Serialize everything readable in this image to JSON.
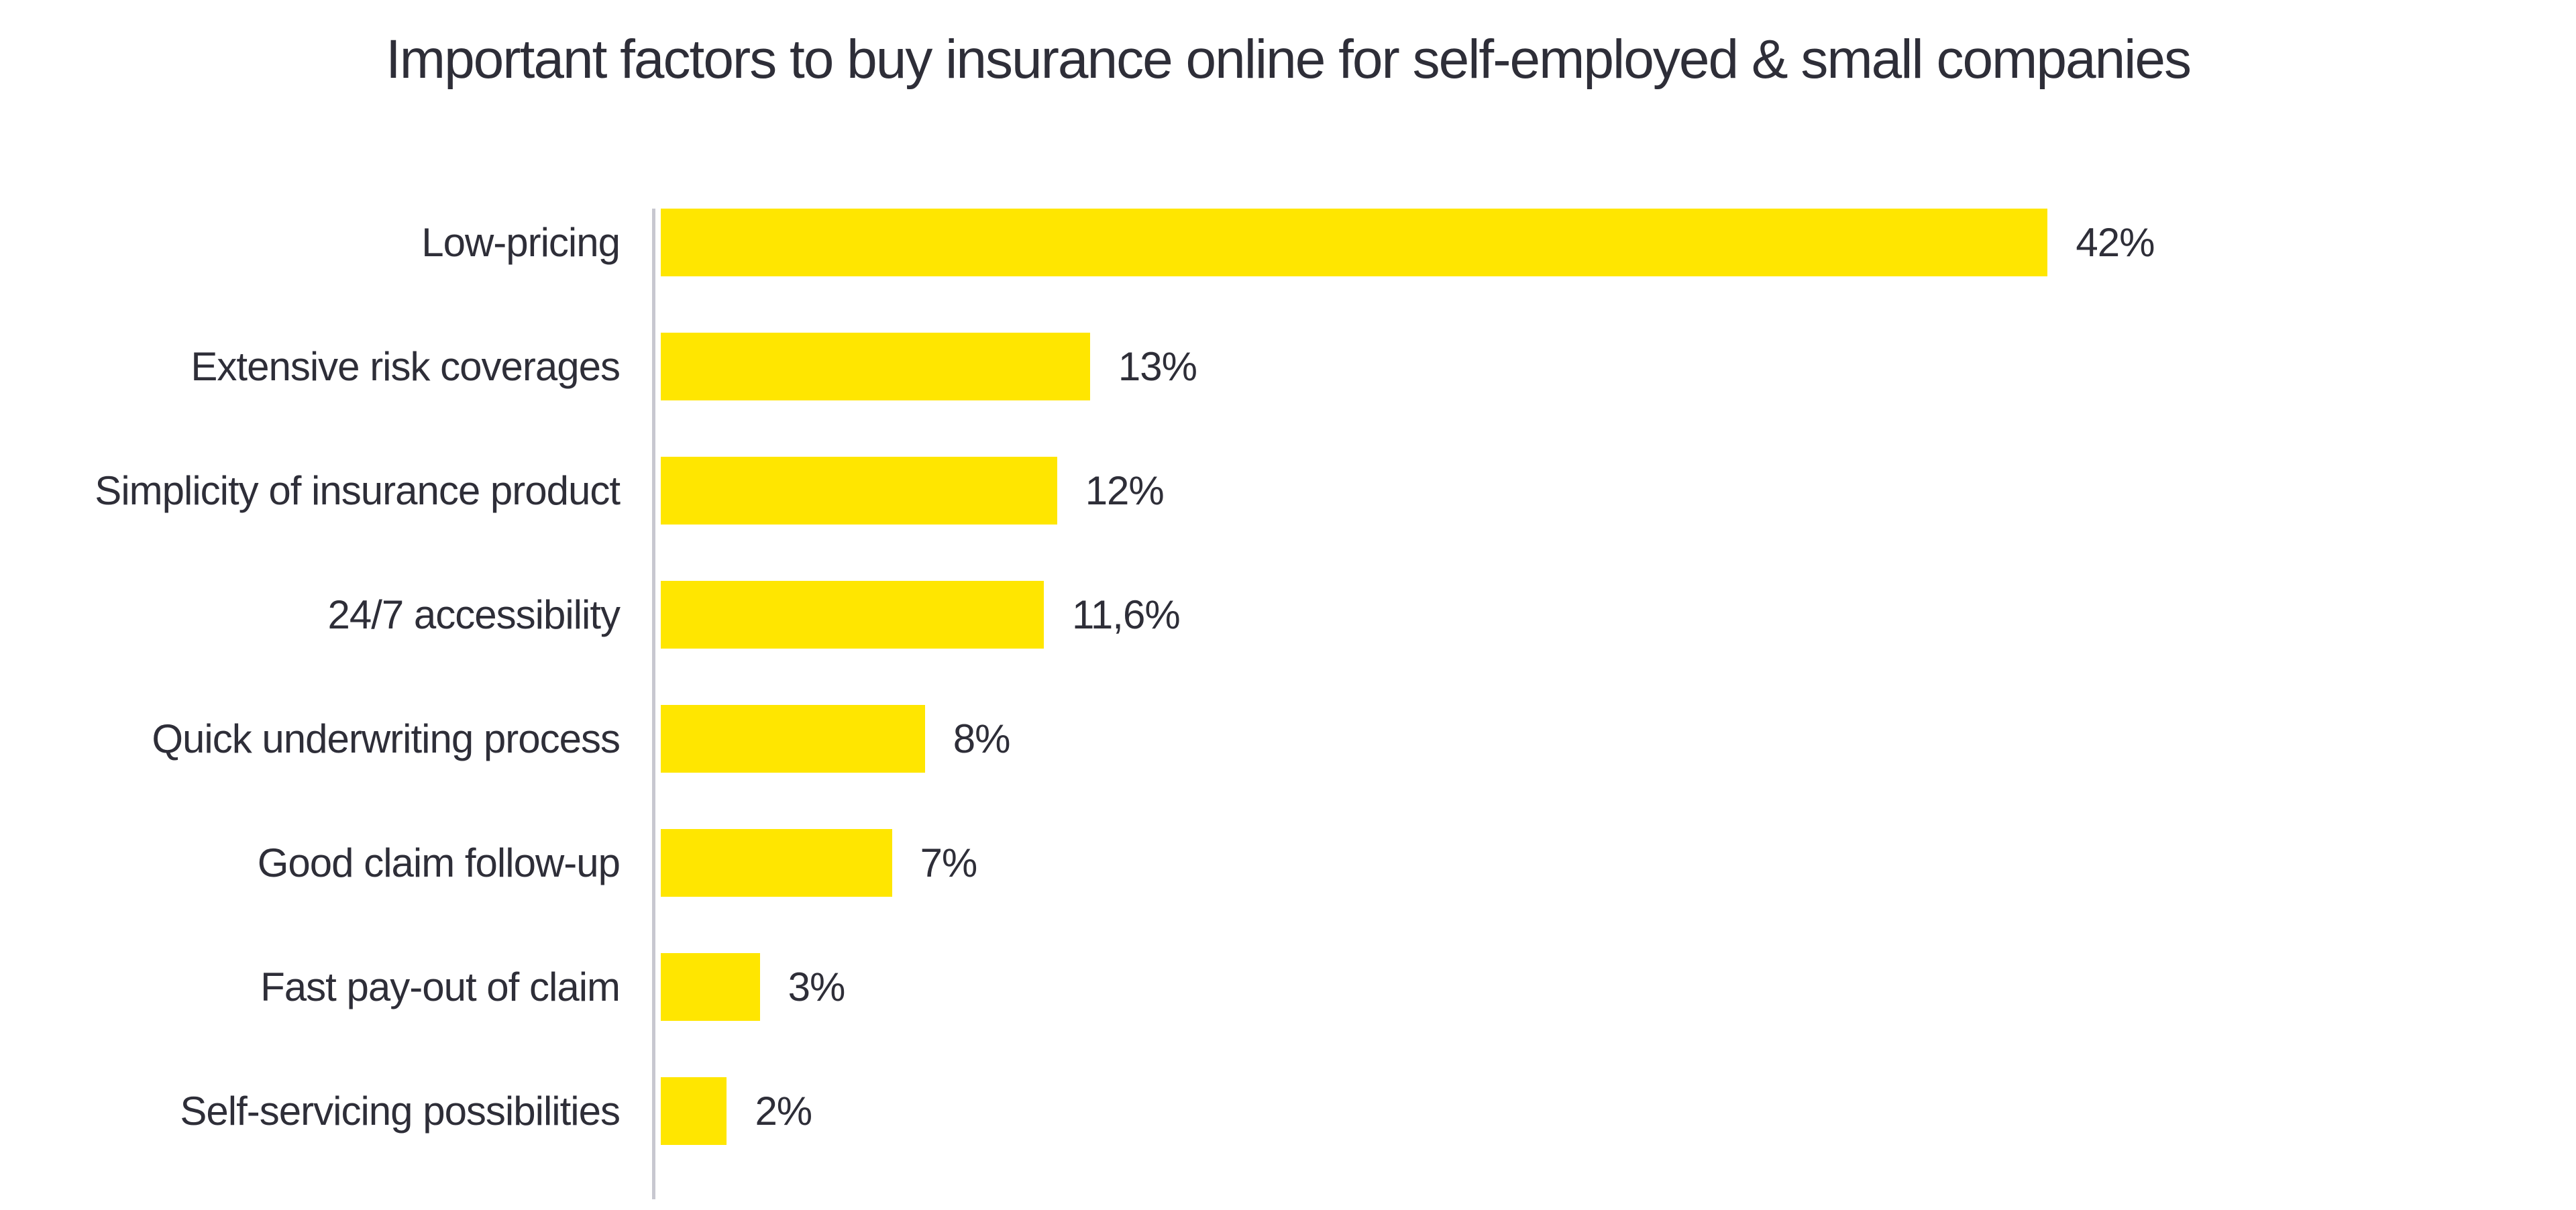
{
  "title": "Important factors to buy insurance online for self-employed & small companies",
  "chart_data": {
    "type": "bar",
    "orientation": "horizontal",
    "title": "Important factors to buy insurance online for self-employed & small companies",
    "categories": [
      "Low-pricing",
      "Extensive risk coverages",
      "Simplicity of insurance product",
      "24/7 accessibility",
      "Quick underwriting process",
      "Good claim follow-up",
      "Fast pay-out of claim",
      "Self-servicing possibilities"
    ],
    "values": [
      42,
      13,
      12,
      11.6,
      8,
      7,
      3,
      2
    ],
    "value_labels": [
      "42%",
      "13%",
      "12%",
      "11,6%",
      "8%",
      "7%",
      "3%",
      "2%"
    ],
    "xlabel": "",
    "ylabel": "",
    "xlim": [
      0,
      58
    ],
    "grid": false,
    "legend": false,
    "value_labels_position": "right-of-bar",
    "bar_color": "#FFE600",
    "text_color": "#2E2E38",
    "axis_line_color": "#C8C8D0",
    "background": "#FFFFFF"
  }
}
